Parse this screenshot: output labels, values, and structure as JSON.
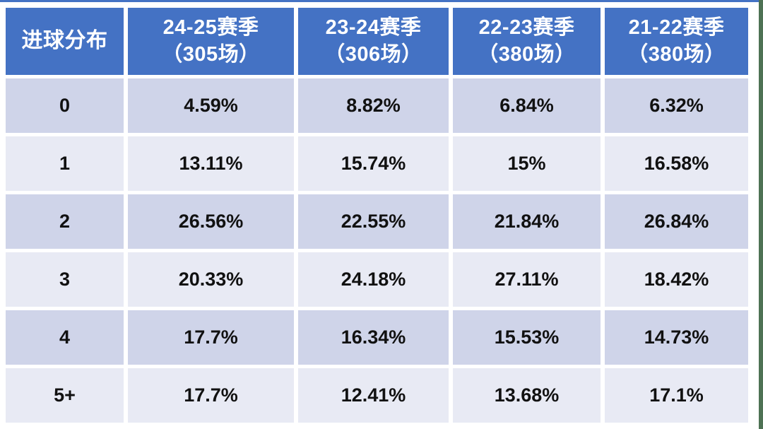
{
  "chart_data": {
    "type": "table",
    "title": "进球分布",
    "corner_header": "进球分布",
    "season_headers": [
      {
        "season": "24-25赛季",
        "games": "（305场）"
      },
      {
        "season": "23-24赛季",
        "games": "（306场）"
      },
      {
        "season": "22-23赛季",
        "games": "（380场）"
      },
      {
        "season": "21-22赛季",
        "games": "（380场）"
      }
    ],
    "rows": [
      {
        "goals": "0",
        "values": [
          "4.59%",
          "8.82%",
          "6.84%",
          "6.32%"
        ]
      },
      {
        "goals": "1",
        "values": [
          "13.11%",
          "15.74%",
          "15%",
          "16.58%"
        ]
      },
      {
        "goals": "2",
        "values": [
          "26.56%",
          "22.55%",
          "21.84%",
          "26.84%"
        ]
      },
      {
        "goals": "3",
        "values": [
          "20.33%",
          "24.18%",
          "27.11%",
          "18.42%"
        ]
      },
      {
        "goals": "4",
        "values": [
          "17.7%",
          "16.34%",
          "15.53%",
          "14.73%"
        ]
      },
      {
        "goals": "5+",
        "values": [
          "17.7%",
          "12.41%",
          "13.68%",
          "17.1%"
        ]
      }
    ]
  },
  "colors": {
    "header_bg": "#4472C4",
    "header_text": "#FFFFFF",
    "row_band_dark": "#CFD4E9",
    "row_band_light": "#E8EAF4",
    "cell_text": "#111111",
    "page_bg": "#FFFFFF",
    "right_edge_strip": "#4E7254"
  }
}
